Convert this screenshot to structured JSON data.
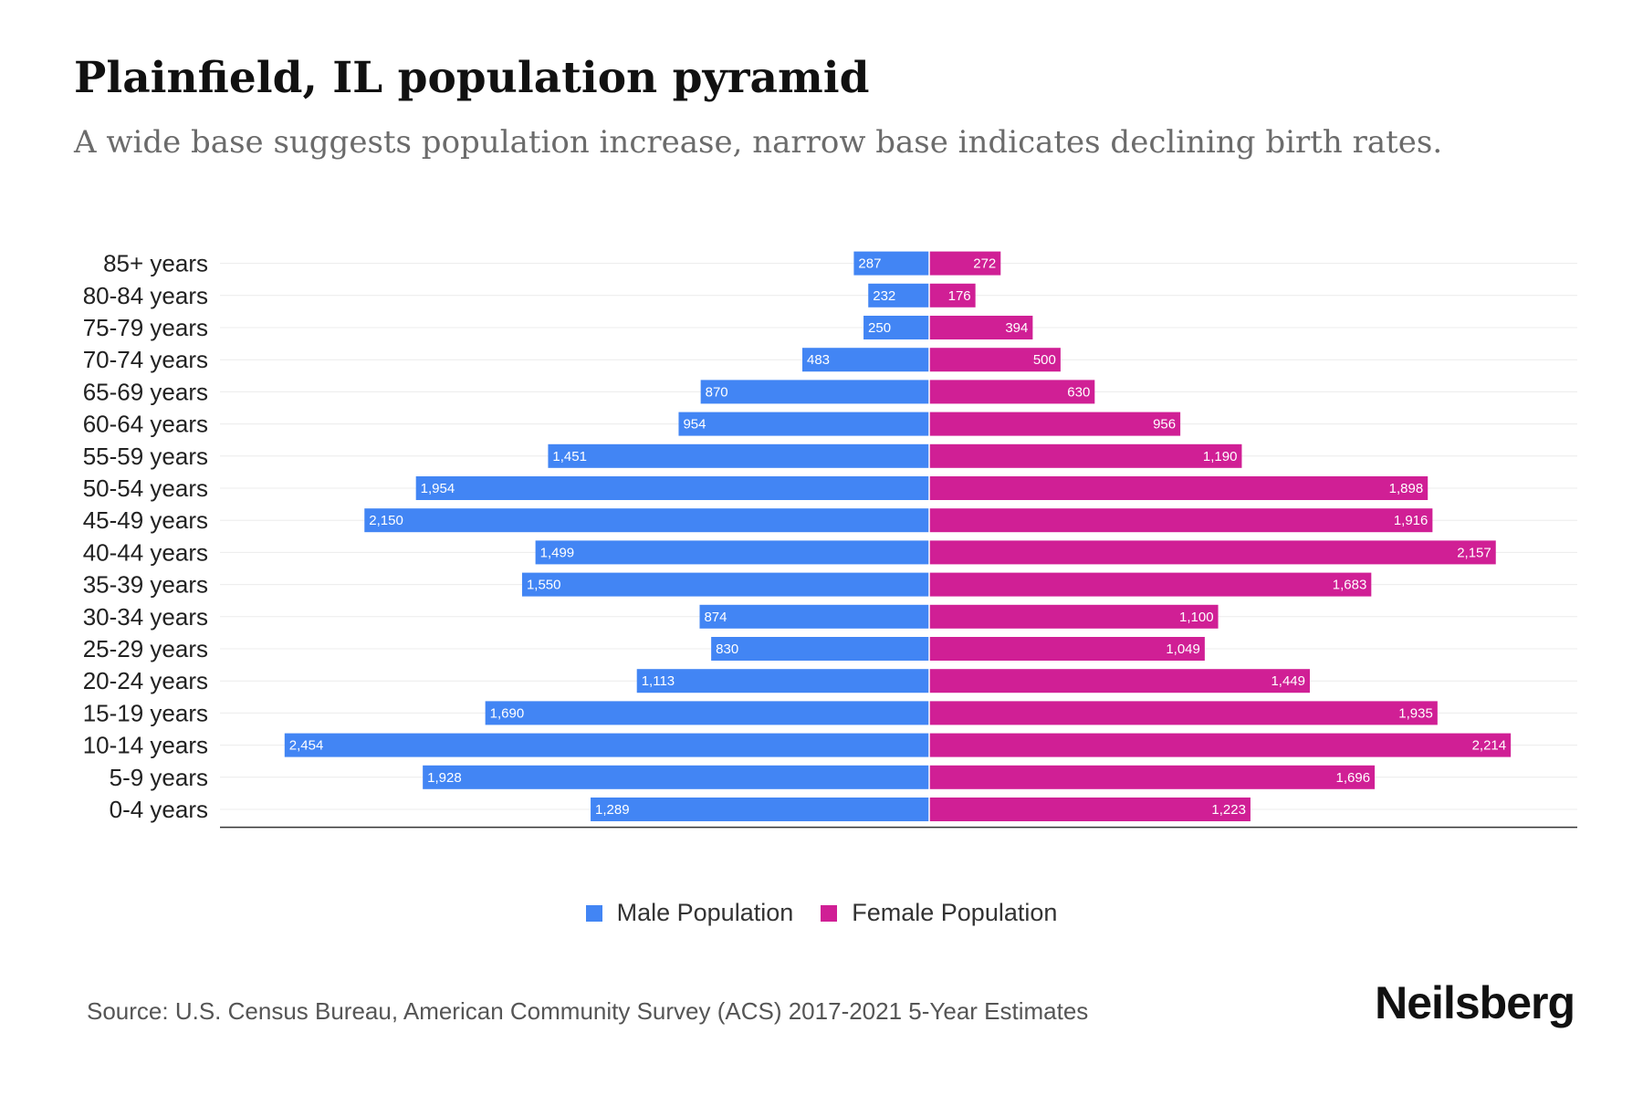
{
  "title": "Plainfield, IL population pyramid",
  "subtitle": "A wide base suggests population increase, narrow base indicates declining birth rates.",
  "legend": {
    "male": "Male Population",
    "female": "Female Population"
  },
  "source": "Source: U.S. Census Bureau, American Community Survey (ACS) 2017-2021 5-Year Estimates",
  "brand": "Neilsberg",
  "colors": {
    "male": "#4285f4",
    "female": "#d01f95",
    "grid": "#ececec",
    "axis": "#333333"
  },
  "chart_data": {
    "type": "bar",
    "orientation": "horizontal-diverging",
    "categories": [
      "85+ years",
      "80-84 years",
      "75-79 years",
      "70-74 years",
      "65-69 years",
      "60-64 years",
      "55-59 years",
      "50-54 years",
      "45-49 years",
      "40-44 years",
      "35-39 years",
      "30-34 years",
      "25-29 years",
      "20-24 years",
      "15-19 years",
      "10-14 years",
      "5-9 years",
      "0-4 years"
    ],
    "series": [
      {
        "name": "Male Population",
        "values": [
          287,
          232,
          250,
          483,
          870,
          954,
          1451,
          1954,
          2150,
          1499,
          1550,
          874,
          830,
          1113,
          1690,
          2454,
          1928,
          1289
        ]
      },
      {
        "name": "Female Population",
        "values": [
          272,
          176,
          394,
          500,
          630,
          956,
          1190,
          1898,
          1916,
          2157,
          1683,
          1100,
          1049,
          1449,
          1935,
          2214,
          1696,
          1223
        ]
      }
    ],
    "value_labels": {
      "male": [
        "287",
        "232",
        "250",
        "483",
        "870",
        "954",
        "1,451",
        "1,954",
        "2,150",
        "1,499",
        "1,550",
        "874",
        "830",
        "1,113",
        "1,690",
        "2,454",
        "1,928",
        "1,289"
      ],
      "female": [
        "272",
        "176",
        "394",
        "500",
        "630",
        "956",
        "1,190",
        "1,898",
        "1,916",
        "2,157",
        "1,683",
        "1,100",
        "1,049",
        "1,449",
        "1,935",
        "2,214",
        "1,696",
        "1,223"
      ]
    },
    "xlim": [
      -2700,
      2500
    ],
    "grid": true,
    "legend_position": "bottom-center"
  }
}
